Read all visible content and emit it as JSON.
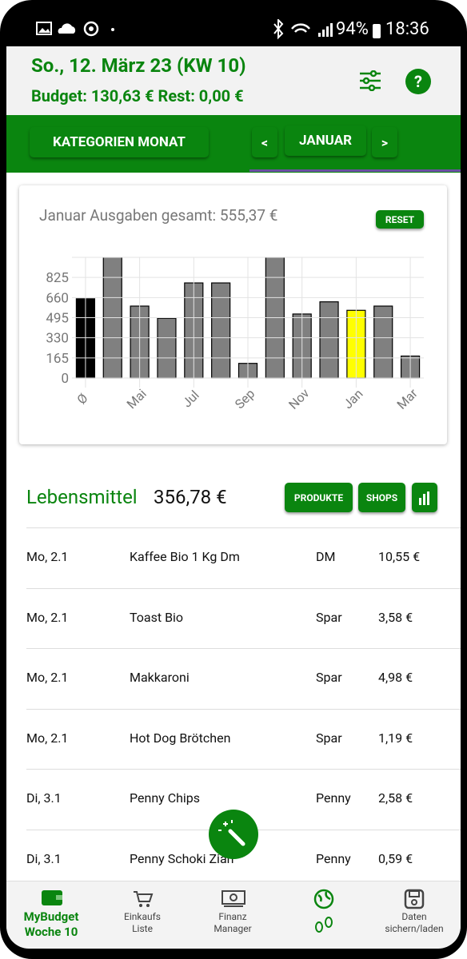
{
  "status": {
    "battery": "94%",
    "time": "18:36"
  },
  "header": {
    "date": "So., 12. März 23 (KW 10)",
    "budget": "Budget: 130,63 € Rest: 0,00 €"
  },
  "toolbar": {
    "category_button": "KATEGORIEN MONAT",
    "prev": "<",
    "month": "JANUAR",
    "next": ">"
  },
  "chart_card": {
    "reset": "RESET"
  },
  "chart_data": {
    "type": "bar",
    "title": "Januar Ausgaben gesamt: 555,37 €",
    "categories": [
      "Ø",
      null,
      "Mai",
      null,
      "Jul",
      null,
      "Sep",
      null,
      "Nov",
      null,
      "Jan",
      null,
      "Mar"
    ],
    "values": [
      650,
      1000,
      590,
      490,
      780,
      780,
      120,
      1000,
      525,
      625,
      555.37,
      590,
      180
    ],
    "colors": [
      "#000000",
      "#808080",
      "#808080",
      "#808080",
      "#808080",
      "#808080",
      "#808080",
      "#808080",
      "#808080",
      "#808080",
      "#ffff00",
      "#808080",
      "#808080"
    ],
    "ylim": [
      0,
      990
    ],
    "yticks": [
      0,
      165,
      330,
      495,
      660,
      825
    ],
    "grid": true
  },
  "section": {
    "title": "Lebensmittel",
    "total": "356,78 €",
    "buttons": [
      "PRODUKTE",
      "SHOPS"
    ]
  },
  "rows": [
    [
      "Mo, 2.1",
      "Kaffee Bio 1 Kg Dm",
      "DM",
      "10,55 €"
    ],
    [
      "Mo, 2.1",
      "Toast Bio",
      "Spar",
      "3,58 €"
    ],
    [
      "Mo, 2.1",
      "Makkaroni",
      "Spar",
      "4,98 €"
    ],
    [
      "Mo, 2.1",
      "Hot Dog Brötchen",
      "Spar",
      "1,19 €"
    ],
    [
      "Di, 3.1",
      "Penny Chips",
      "Penny",
      "2,58 €"
    ],
    [
      "Di, 3.1",
      "Penny Schoki Zian",
      "Penny",
      "0,59 €"
    ]
  ],
  "nav": [
    [
      "MyBudget",
      "Woche 10"
    ],
    [
      "Einkaufs",
      "Liste"
    ],
    [
      "Finanz",
      "Manager"
    ],
    [],
    [
      "Daten",
      "sichern/laden"
    ]
  ]
}
